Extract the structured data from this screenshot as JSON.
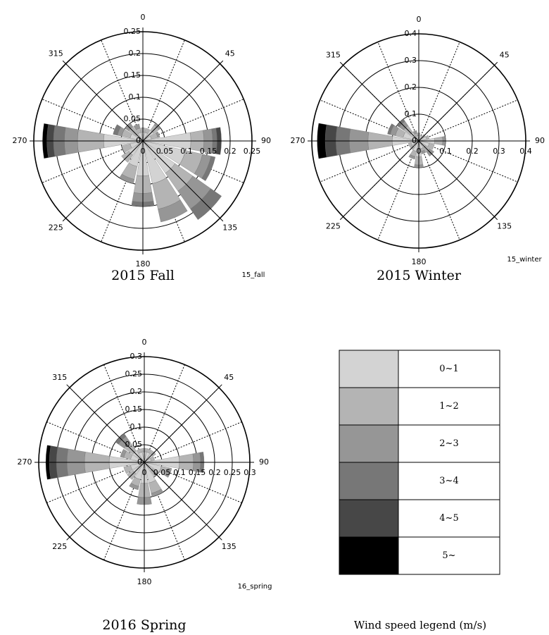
{
  "chart_data": [
    {
      "type": "wind-rose",
      "title": "2015 Fall",
      "tag": "15_fall",
      "x": [
        0,
        22.5,
        45,
        67.5,
        90,
        112.5,
        135,
        157.5,
        180,
        202.5,
        225,
        247.5,
        270,
        292.5,
        315,
        337.5
      ],
      "xticks": [
        0,
        45,
        90,
        135,
        180,
        225,
        270,
        315
      ],
      "ylim": [
        0,
        0.25
      ],
      "yticks": [
        0,
        0.05,
        0.1,
        0.15,
        0.2,
        0.25
      ],
      "series": [
        {
          "name": "0~1",
          "color": "#d3d3d3",
          "values": [
            0.02,
            0.02,
            0.03,
            0.02,
            0.11,
            0.1,
            0.09,
            0.1,
            0.08,
            0.06,
            0.04,
            0.03,
            0.09,
            0.03,
            0.02,
            0.02
          ]
        },
        {
          "name": "1~2",
          "color": "#b4b4b4",
          "values": [
            0.01,
            0.01,
            0.015,
            0.015,
            0.03,
            0.04,
            0.05,
            0.06,
            0.04,
            0.03,
            0.02,
            0.02,
            0.06,
            0.02,
            0.02,
            0.01
          ]
        },
        {
          "name": "2~3",
          "color": "#969696",
          "values": [
            0,
            0,
            0.005,
            0.005,
            0.02,
            0.02,
            0.05,
            0.03,
            0.02,
            0.01,
            0,
            0,
            0.03,
            0.01,
            0.01,
            0.01
          ]
        },
        {
          "name": "3~4",
          "color": "#777777",
          "values": [
            0,
            0,
            0,
            0,
            0.01,
            0.01,
            0.03,
            0,
            0.01,
            0,
            0,
            0,
            0.025,
            0.01,
            0,
            0
          ]
        },
        {
          "name": "4~5",
          "color": "#474747",
          "values": [
            0,
            0,
            0,
            0,
            0.01,
            0,
            0,
            0,
            0,
            0,
            0,
            0,
            0.015,
            0,
            0,
            0
          ]
        },
        {
          "name": "5~",
          "color": "#000000",
          "values": [
            0,
            0,
            0,
            0,
            0,
            0,
            0,
            0,
            0,
            0,
            0,
            0,
            0.01,
            0,
            0,
            0
          ]
        }
      ]
    },
    {
      "type": "wind-rose",
      "title": "2015 Winter",
      "tag": "15_winter",
      "x": [
        0,
        22.5,
        45,
        67.5,
        90,
        112.5,
        135,
        157.5,
        180,
        202.5,
        225,
        247.5,
        270,
        292.5,
        315,
        337.5
      ],
      "xticks": [
        0,
        45,
        90,
        135,
        180,
        225,
        270,
        315
      ],
      "ylim": [
        0,
        0.4
      ],
      "yticks": [
        0,
        0.1,
        0.2,
        0.3,
        0.4
      ],
      "series": [
        {
          "name": "0~1",
          "color": "#d3d3d3",
          "values": [
            0.02,
            0.02,
            0.02,
            0.03,
            0.06,
            0.04,
            0.03,
            0.03,
            0.06,
            0.04,
            0.03,
            0.03,
            0.1,
            0.06,
            0.04,
            0.02
          ]
        },
        {
          "name": "1~2",
          "color": "#b4b4b4",
          "values": [
            0.01,
            0,
            0.01,
            0.01,
            0.03,
            0.02,
            0.02,
            0.01,
            0.03,
            0.02,
            0.01,
            0.01,
            0.09,
            0.03,
            0.03,
            0.01
          ]
        },
        {
          "name": "2~3",
          "color": "#969696",
          "values": [
            0,
            0,
            0,
            0,
            0.01,
            0,
            0.02,
            0.01,
            0.01,
            0.01,
            0,
            0,
            0.07,
            0.02,
            0.02,
            0.01
          ]
        },
        {
          "name": "3~4",
          "color": "#777777",
          "values": [
            0,
            0,
            0,
            0,
            0,
            0,
            0,
            0,
            0,
            0,
            0,
            0,
            0.05,
            0.01,
            0.01,
            0
          ]
        },
        {
          "name": "4~5",
          "color": "#474747",
          "values": [
            0,
            0,
            0,
            0,
            0,
            0,
            0,
            0,
            0,
            0,
            0,
            0,
            0.04,
            0,
            0,
            0
          ]
        },
        {
          "name": "5~",
          "color": "#000000",
          "values": [
            0,
            0,
            0,
            0,
            0,
            0,
            0,
            0,
            0,
            0,
            0,
            0,
            0.03,
            0,
            0,
            0
          ]
        }
      ]
    },
    {
      "type": "wind-rose",
      "title": "2016 Spring",
      "tag": "16_spring",
      "x": [
        0,
        22.5,
        45,
        67.5,
        90,
        112.5,
        135,
        157.5,
        180,
        202.5,
        225,
        247.5,
        270,
        292.5,
        315,
        337.5
      ],
      "xticks": [
        0,
        45,
        90,
        135,
        180,
        225,
        270,
        315
      ],
      "ylim": [
        0,
        0.3
      ],
      "yticks": [
        0,
        0.05,
        0.1,
        0.15,
        0.2,
        0.25,
        0.3
      ],
      "series": [
        {
          "name": "0~1",
          "color": "#d3d3d3",
          "values": [
            0.03,
            0.03,
            0.03,
            0.02,
            0.1,
            0.05,
            0.03,
            0.06,
            0.06,
            0.05,
            0.04,
            0.04,
            0.1,
            0.04,
            0.04,
            0.03
          ]
        },
        {
          "name": "1~2",
          "color": "#b4b4b4",
          "values": [
            0.01,
            0.01,
            0.01,
            0.01,
            0.04,
            0.02,
            0.02,
            0.03,
            0.04,
            0.02,
            0.02,
            0.02,
            0.07,
            0.02,
            0.03,
            0.01
          ]
        },
        {
          "name": "2~3",
          "color": "#969696",
          "values": [
            0,
            0,
            0,
            0,
            0.02,
            0.01,
            0,
            0.01,
            0.02,
            0.01,
            0,
            0,
            0.05,
            0.01,
            0.02,
            0
          ]
        },
        {
          "name": "3~4",
          "color": "#777777",
          "values": [
            0,
            0,
            0,
            0,
            0.01,
            0,
            0,
            0,
            0,
            0,
            0,
            0,
            0.03,
            0,
            0.01,
            0
          ]
        },
        {
          "name": "4~5",
          "color": "#474747",
          "values": [
            0,
            0,
            0,
            0,
            0,
            0,
            0,
            0,
            0,
            0,
            0,
            0,
            0.02,
            0,
            0,
            0
          ]
        },
        {
          "name": "5~",
          "color": "#000000",
          "values": [
            0,
            0,
            0,
            0,
            0,
            0,
            0,
            0,
            0,
            0,
            0,
            0,
            0.01,
            0,
            0,
            0
          ]
        }
      ]
    }
  ],
  "legend": {
    "title": "Wind speed legend (m/s)"
  }
}
